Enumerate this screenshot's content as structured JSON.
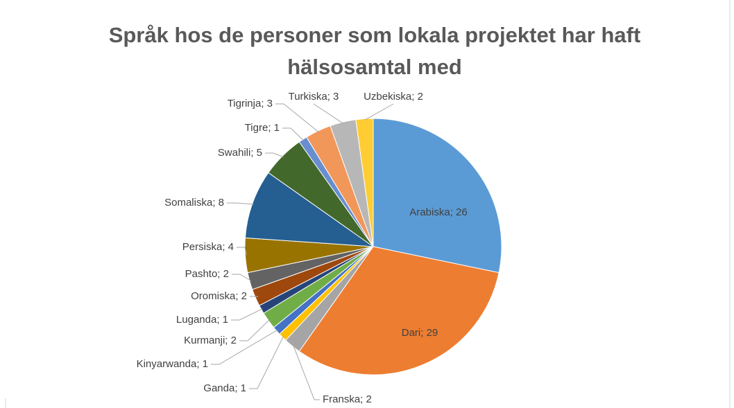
{
  "chart_data": {
    "type": "pie",
    "title": "Språk hos de personer som lokala projektet har haft hälsosamtal med",
    "categories": [
      "Arabiska",
      "Dari",
      "Franska",
      "Ganda",
      "Kinyarwanda",
      "Kurmanji",
      "Luganda",
      "Oromiska",
      "Pashto",
      "Persiska",
      "Somaliska",
      "Swahili",
      "Tigre",
      "Tigrinja",
      "Turkiska",
      "Uzbekiska"
    ],
    "values": [
      26,
      29,
      2,
      1,
      1,
      2,
      1,
      2,
      2,
      4,
      8,
      5,
      1,
      3,
      3,
      2
    ],
    "value_labels": [
      "Arabiska; 26",
      "Dari; 29",
      "Franska; 2",
      "Ganda; 1",
      "Kinyarwanda; 1",
      "Kurmanji; 2",
      "Luganda; 1",
      "Oromiska; 2",
      "Pashto; 2",
      "Persiska; 4",
      "Somaliska; 8",
      "Swahili; 5",
      "Tigre; 1",
      "Tigrinja; 3",
      "Turkiska; 3",
      "Uzbekiska; 2"
    ],
    "colors": [
      "#5b9bd5",
      "#ed7d31",
      "#a5a5a5",
      "#ffc000",
      "#4472c4",
      "#70ad47",
      "#264478",
      "#9e480e",
      "#636363",
      "#997300",
      "#255e91",
      "#43682b",
      "#698ed0",
      "#f1975a",
      "#b7b7b7",
      "#ffcd33"
    ]
  }
}
